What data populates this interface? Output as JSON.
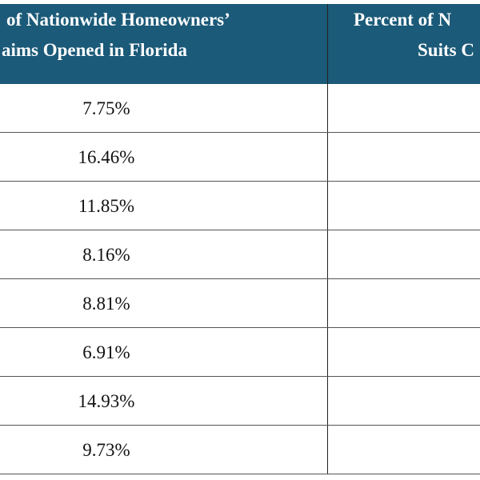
{
  "table": {
    "header": [
      [
        "of Nationwide Homeowners’",
        "aims Opened in Florida"
      ],
      [
        "Percent of N",
        "Suits C"
      ]
    ],
    "rows": [
      "7.75%",
      "16.46%",
      "11.85%",
      "8.16%",
      "8.81%",
      "6.91%",
      "14.93%",
      "9.73%"
    ]
  }
}
